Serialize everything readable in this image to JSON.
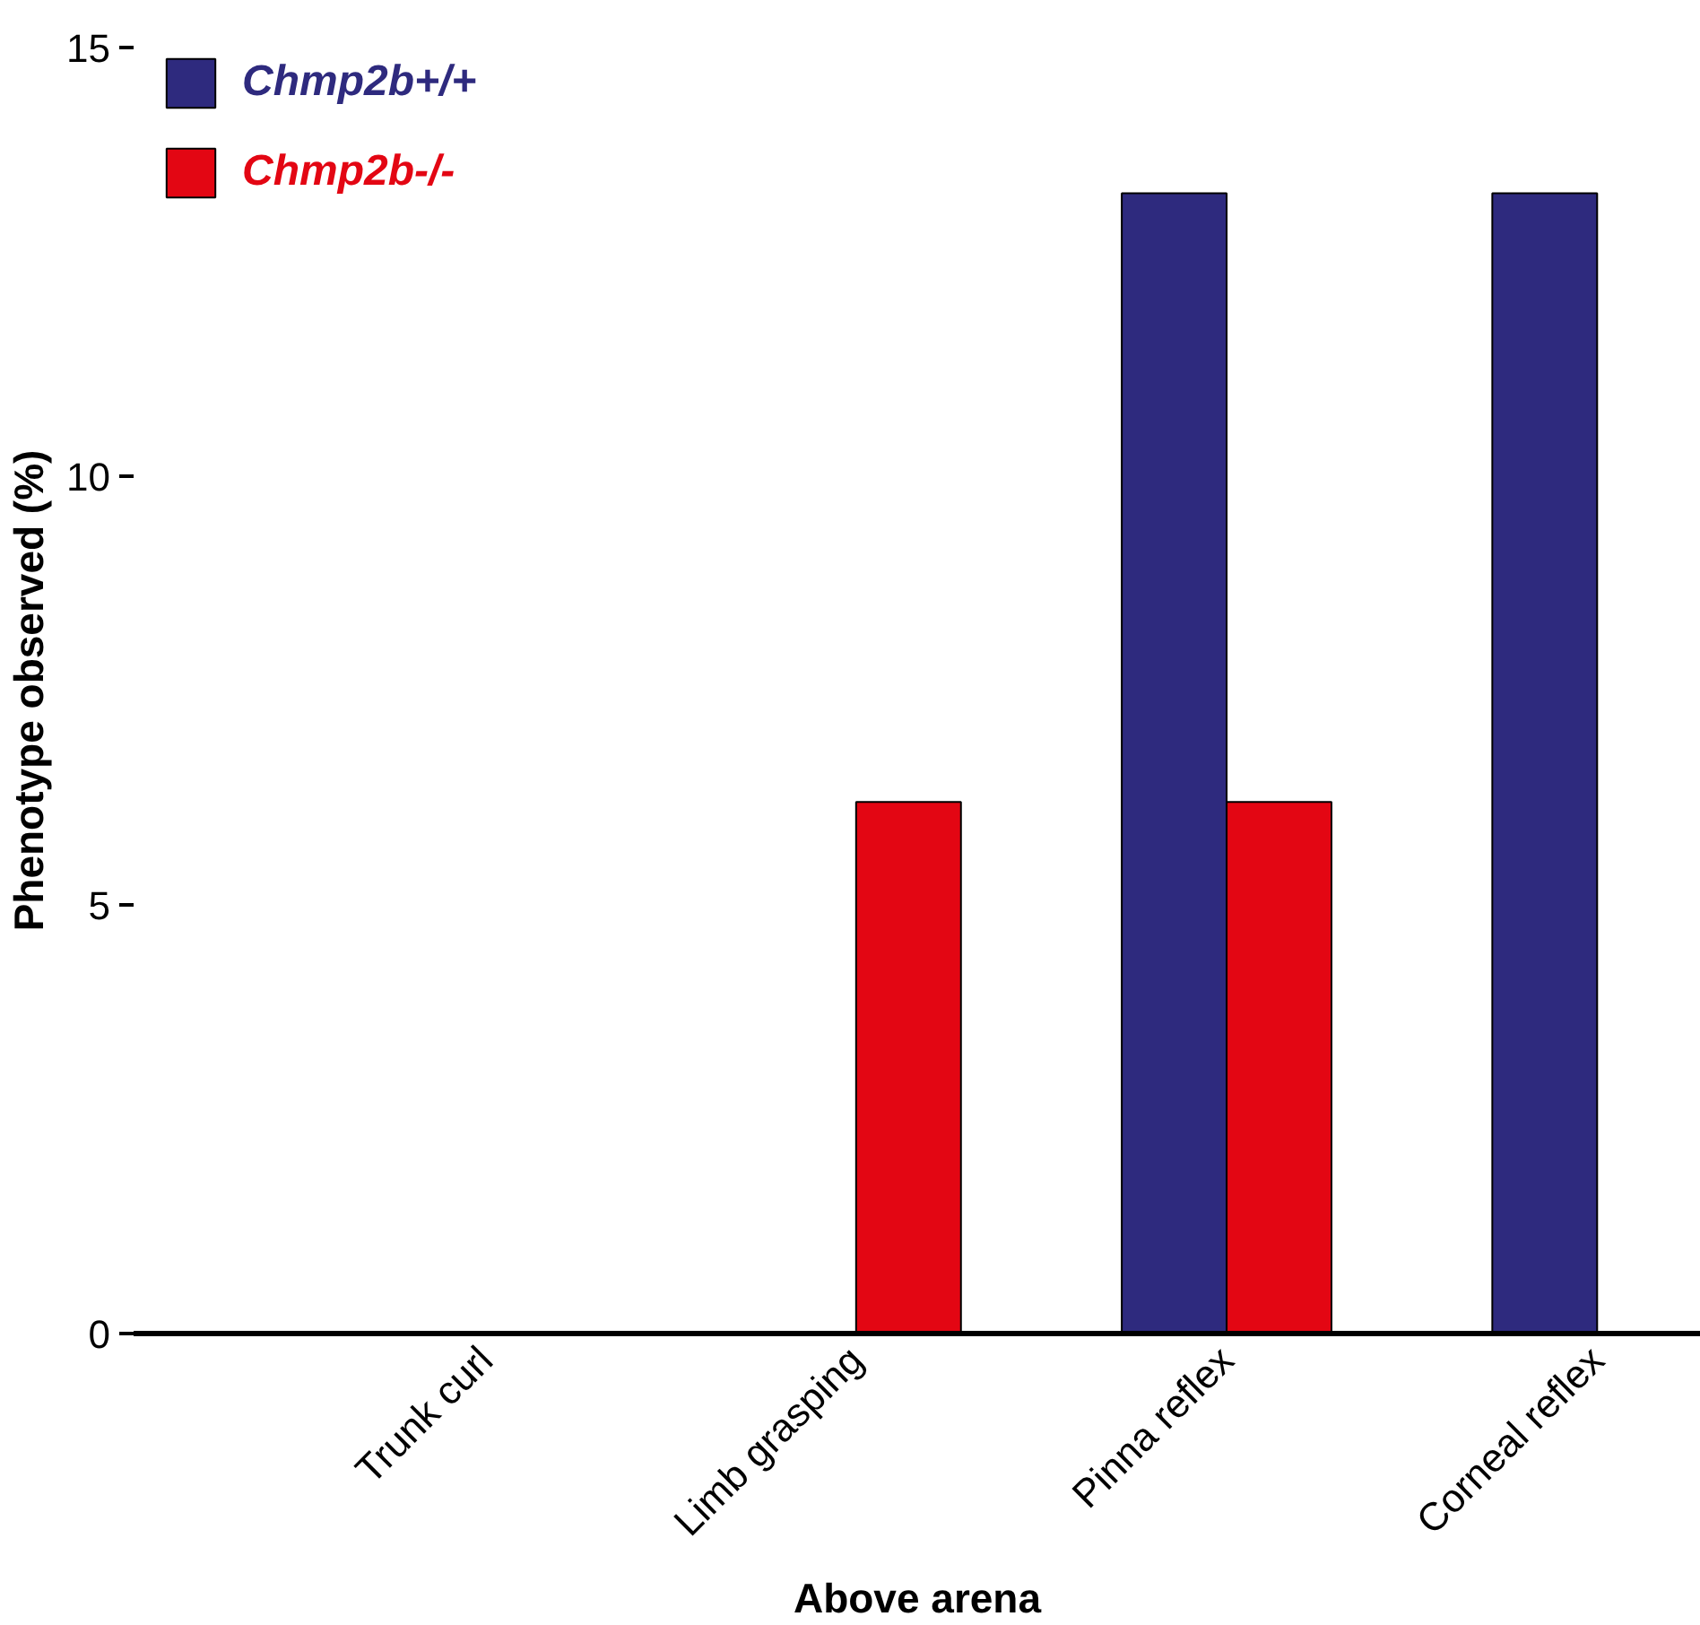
{
  "chart_data": {
    "type": "bar",
    "xlabel": "Above arena",
    "ylabel": "Phenotype observed (%)",
    "categories": [
      "Trunk curl",
      "Limb grasping",
      "Pinna reflex",
      "Corneal reflex"
    ],
    "series": [
      {
        "name": "Chmp2b+/+",
        "color": "#2e2a7e",
        "values": [
          0,
          0,
          13.3,
          13.3
        ]
      },
      {
        "name": "Chmp2b-/-",
        "color": "#e30613",
        "values": [
          0,
          6.2,
          6.2,
          0
        ]
      }
    ],
    "ylim": [
      0,
      15
    ],
    "yticks": [
      0,
      5,
      10,
      15
    ],
    "grid": false,
    "legend": "top left"
  }
}
